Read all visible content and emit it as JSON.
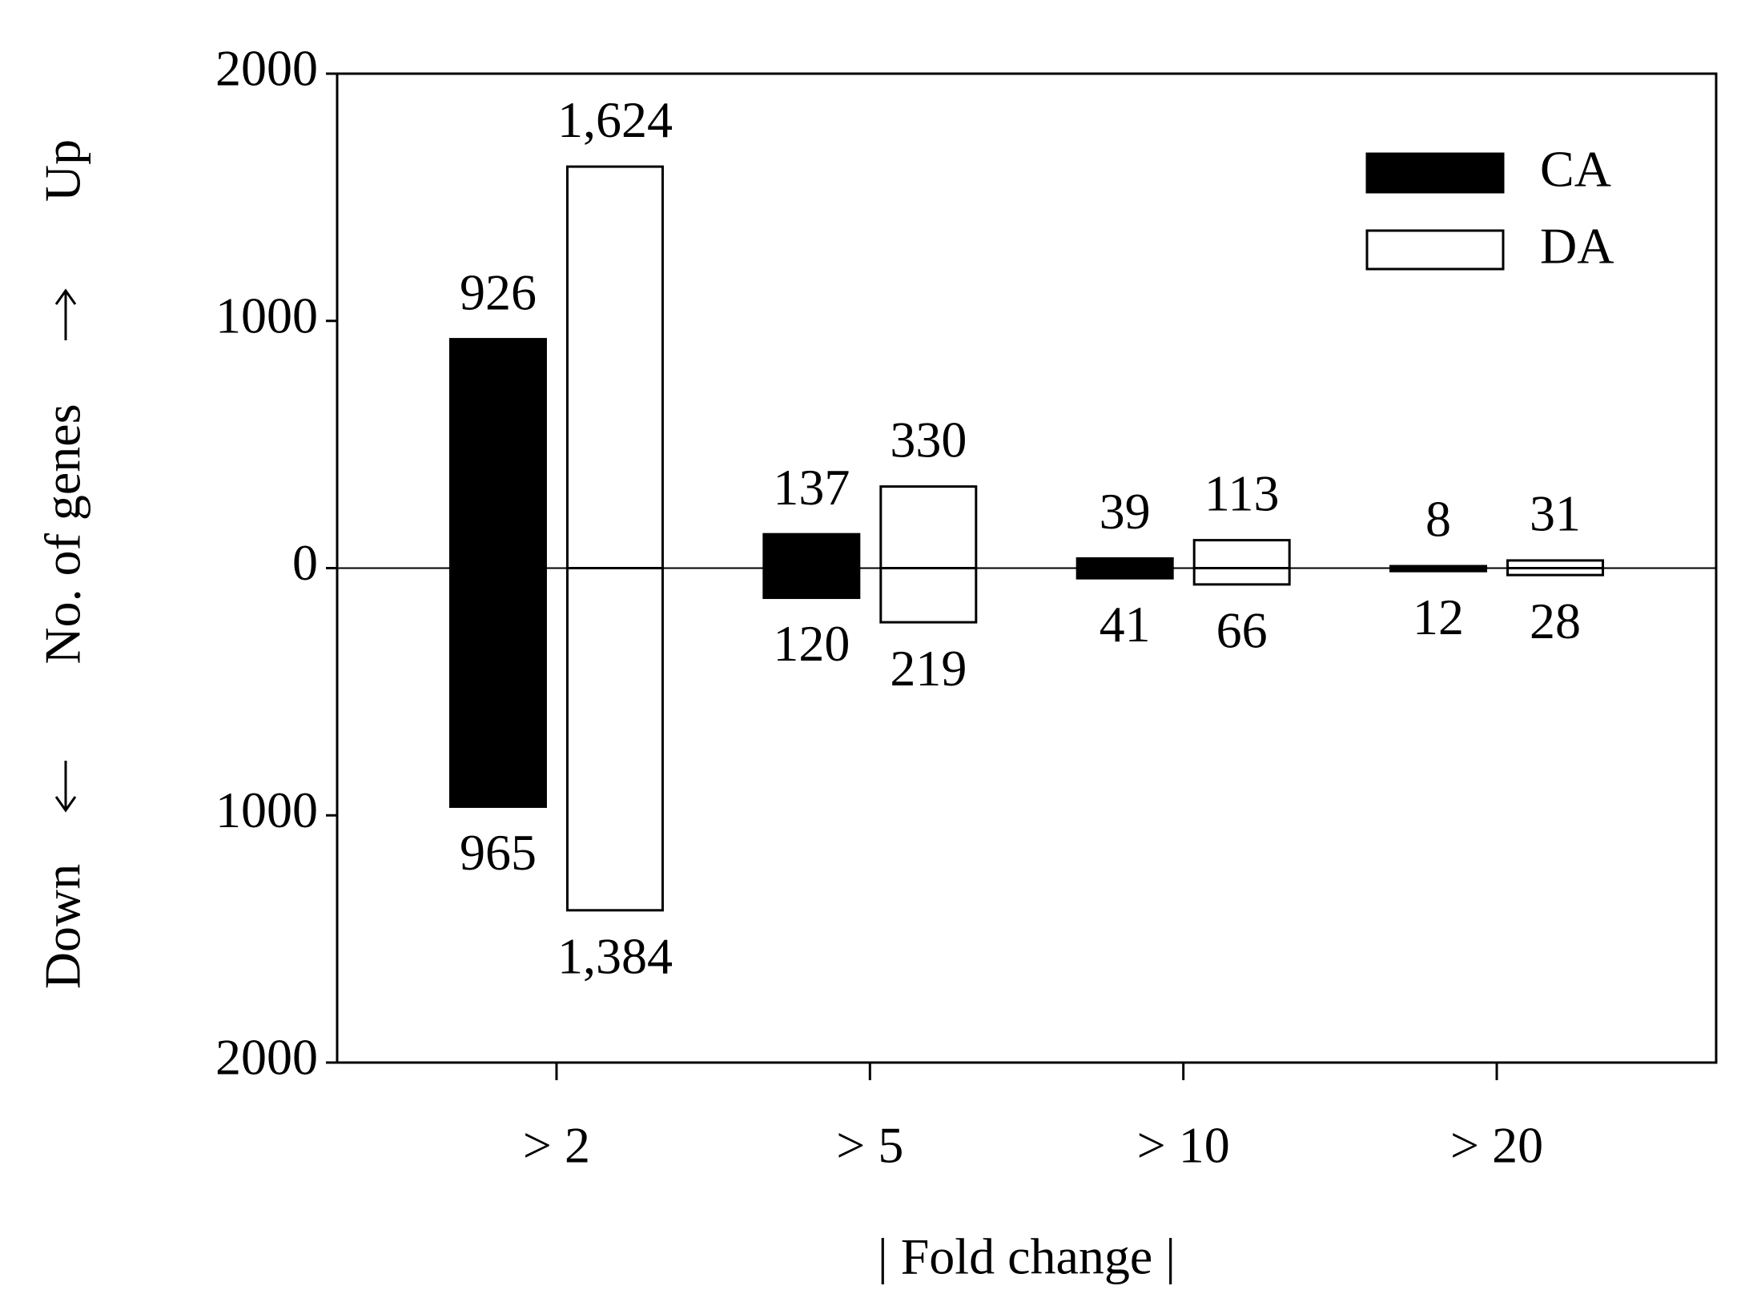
{
  "chart_data": {
    "type": "diverging-bar",
    "xlabel": "| Fold change |",
    "ylabel_parts": [
      "Down",
      "No. of genes",
      "Up"
    ],
    "categories": [
      "> 2",
      "> 5",
      "> 10",
      "> 20"
    ],
    "series": [
      {
        "name": "CA",
        "color": "#000000",
        "values": [
          926,
          137,
          39,
          8
        ],
        "value_labels": [
          "926",
          "137",
          "39",
          "8"
        ],
        "down_values": [
          -965,
          -120,
          -41,
          -12
        ],
        "down_labels": [
          "965",
          "120",
          "41",
          "12"
        ]
      },
      {
        "name": "DA",
        "color": "#ffffff",
        "values": [
          1624,
          330,
          113,
          31
        ],
        "value_labels": [
          "1,624",
          "330",
          "113",
          "31"
        ],
        "down_values": [
          -1384,
          -219,
          -66,
          -28
        ],
        "down_labels": [
          "1,384",
          "219",
          "66",
          "28"
        ]
      }
    ],
    "ylim": [
      -2000,
      2000
    ],
    "yticks": [
      {
        "value": -2000,
        "label": "2000"
      },
      {
        "value": -1000,
        "label": "1000"
      },
      0,
      1000,
      2000
    ],
    "legend": "top-right"
  }
}
